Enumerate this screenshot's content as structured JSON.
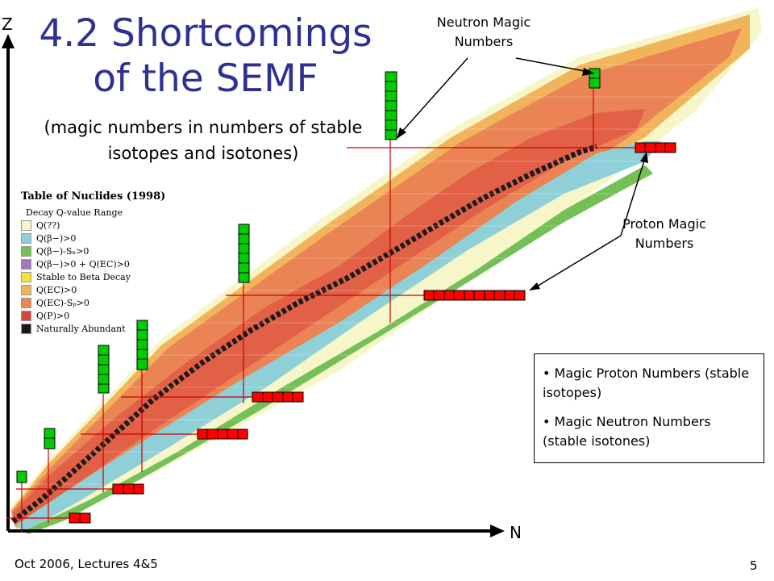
{
  "slide": {
    "title": "4.2 Shortcomings of the SEMF",
    "title_line1": "4.2 Shortcomings",
    "title_line2": "of the SEMF",
    "subtitle": "(magic numbers in numbers of stable isotopes and isotones)"
  },
  "axes": {
    "y_label": "Z",
    "x_label": "N"
  },
  "callouts": {
    "neutron": "Neutron Magic Numbers",
    "proton": "Proton Magic Numbers"
  },
  "legend": {
    "title": "Table of Nuclides (1998)",
    "subtitle": "Decay Q-value Range",
    "items": [
      {
        "label": "Q(??)",
        "color": "#f7f6c8"
      },
      {
        "label": "Q(β−)>0",
        "color": "#8fd0d8"
      },
      {
        "label": "Q(β−)-Sₙ>0",
        "color": "#74c057"
      },
      {
        "label": "Q(β−)>0 + Q(EC)>0",
        "color": "#a077b8"
      },
      {
        "label": "Stable to Beta Decay",
        "color": "#f1e33b"
      },
      {
        "label": "Q(EC)>0",
        "color": "#f2b45a"
      },
      {
        "label": "Q(EC)-Sₚ>0",
        "color": "#ea8455"
      },
      {
        "label": "Q(P)>0",
        "color": "#d9443a"
      },
      {
        "label": "Naturally Abundant",
        "color": "#1a1a1a"
      }
    ]
  },
  "info_box": {
    "items": [
      "Magic Proton Numbers (stable isotopes)",
      "Magic Neutron Numbers (stable isotones)"
    ]
  },
  "footer": {
    "left": "Oct 2006, Lectures 4&5",
    "page": "5"
  },
  "colors": {
    "title": "#2e3192",
    "proton_marker": "#ff0000",
    "neutron_marker": "#00cc00",
    "guide_line": "#cc0000"
  }
}
